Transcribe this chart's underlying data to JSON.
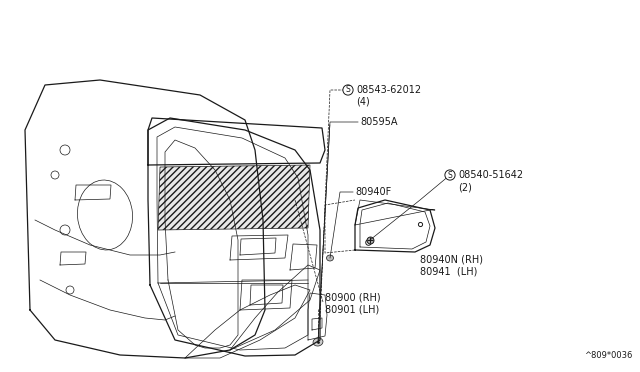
{
  "bg_color": "#ffffff",
  "line_color": "#1a1a1a",
  "fig_width": 6.4,
  "fig_height": 3.72,
  "dpi": 100,
  "watermark": "^809*0036",
  "label_08543": "08543-62012",
  "label_08543_qty": "(4)",
  "label_80595A": "80595A",
  "label_80940F": "80940F",
  "label_08540": "08540-51642",
  "label_08540_qty": "(2)",
  "label_80900": "80900 (RH)",
  "label_80901": "80901 (LH)",
  "label_80940N": "80940N (RH)",
  "label_80941": "80941  (LH)"
}
